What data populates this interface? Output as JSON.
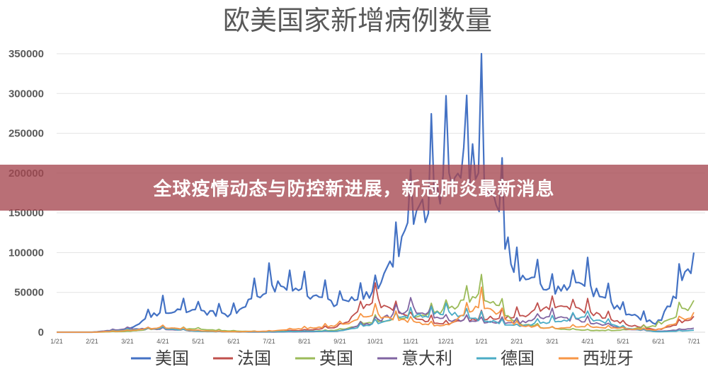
{
  "banner": {
    "text": "全球疫情动态与防控新进展，新冠肺炎最新消息"
  },
  "chart_data": {
    "type": "line",
    "title": "欧美国家新增病例数量",
    "xlabel": "",
    "ylabel": "",
    "ylim": [
      0,
      350000
    ],
    "yticks": [
      0,
      50000,
      100000,
      150000,
      200000,
      250000,
      300000,
      350000
    ],
    "x": [
      "1/21",
      "2/21",
      "3/21",
      "4/21",
      "5/21",
      "6/21",
      "7/21",
      "8/21",
      "9/21",
      "10/21",
      "11/21",
      "12/21",
      "1/21",
      "2/21",
      "3/21",
      "4/21",
      "5/21",
      "6/21",
      "7/21"
    ],
    "grid": true,
    "legend_position": "bottom",
    "series": [
      {
        "name": "美国",
        "color": "#4472c4",
        "values": [
          0,
          0,
          3000,
          32000,
          28000,
          25000,
          68000,
          55000,
          40000,
          55000,
          150000,
          220000,
          250000,
          80000,
          58000,
          65000,
          28000,
          12000,
          100000
        ]
      },
      {
        "name": "法国",
        "color": "#c0504d",
        "values": [
          0,
          0,
          1500,
          5000,
          1000,
          500,
          800,
          2500,
          8000,
          45000,
          20000,
          12000,
          20000,
          22000,
          35000,
          30000,
          12000,
          3000,
          20000
        ]
      },
      {
        "name": "英国",
        "color": "#9bbb59",
        "values": [
          0,
          0,
          1000,
          6000,
          4000,
          1500,
          800,
          1000,
          3000,
          15000,
          22000,
          30000,
          55000,
          12000,
          5000,
          2500,
          2500,
          10000,
          40000
        ]
      },
      {
        "name": "意大利",
        "color": "#8064a2",
        "values": [
          0,
          0,
          5000,
          4500,
          1500,
          300,
          200,
          500,
          1500,
          15000,
          34000,
          18000,
          15000,
          13000,
          22000,
          15000,
          5000,
          1000,
          5000
        ]
      },
      {
        "name": "德国",
        "color": "#4bacc6",
        "values": [
          0,
          0,
          3000,
          5500,
          1000,
          400,
          500,
          1200,
          1500,
          12000,
          22000,
          27000,
          18000,
          8000,
          15000,
          20000,
          6000,
          500,
          2500
        ]
      },
      {
        "name": "西班牙",
        "color": "#f79646",
        "values": [
          0,
          0,
          2000,
          7000,
          2000,
          500,
          1500,
          5000,
          10000,
          25000,
          15000,
          8000,
          40000,
          10000,
          5000,
          8000,
          5000,
          3000,
          25000
        ]
      }
    ]
  }
}
